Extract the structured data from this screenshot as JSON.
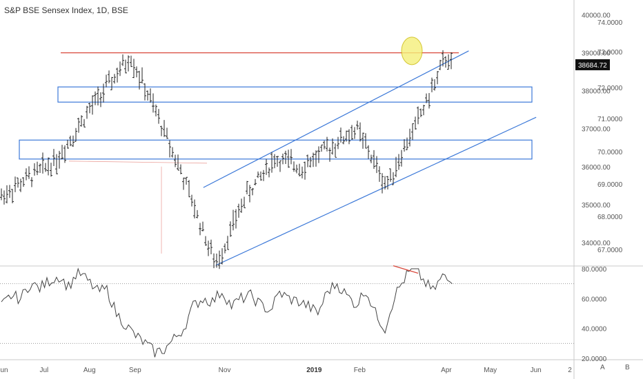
{
  "header": {
    "title": "S&P BSE Sensex Index, 1D, BSE"
  },
  "price_label": "38684.72",
  "corner_buttons": [
    "A",
    "B"
  ],
  "colors": {
    "price_bars": "#222222",
    "channel": "#3b78d8",
    "resistance": "#d9483b",
    "highlight": "#f5ef7a",
    "rsi_line": "#444444",
    "price_tag_bg": "#111111"
  },
  "chart_data": [
    {
      "type": "ohlc",
      "title": "S&P BSE Sensex Index, 1D, BSE",
      "x_ticks": [
        "un",
        "Jul",
        "Aug",
        "Sep",
        "Nov",
        "2019",
        "Feb",
        "Apr",
        "May",
        "Jun",
        "2"
      ],
      "y_ticks_left_axis": [
        "40000.00",
        "39000.00",
        "38000.00",
        "37000.00",
        "36000.00",
        "35000.00",
        "34000.00"
      ],
      "y_ticks_right_axis": [
        "74.0000",
        "73.0000",
        "72.0000",
        "71.0000",
        "70.0000",
        "69.0000",
        "68.0000",
        "67.0000"
      ],
      "ylim": [
        33400,
        40300
      ],
      "last_price": 38684.72,
      "key_closes": [
        {
          "date": "2018-06",
          "close": 35200
        },
        {
          "date": "2018-07-10",
          "close": 36200
        },
        {
          "date": "2018-08-01",
          "close": 37500
        },
        {
          "date": "2018-08-29",
          "close": 38900
        },
        {
          "date": "2018-09-20",
          "close": 37000
        },
        {
          "date": "2018-10-01",
          "close": 36000
        },
        {
          "date": "2018-10-26",
          "close": 33400
        },
        {
          "date": "2018-11-15",
          "close": 35200
        },
        {
          "date": "2018-12-05",
          "close": 36200
        },
        {
          "date": "2018-12-24",
          "close": 36000
        },
        {
          "date": "2019-01-30",
          "close": 37000
        },
        {
          "date": "2019-02-19",
          "close": 35500
        },
        {
          "date": "2019-03-05",
          "close": 36600
        },
        {
          "date": "2019-03-22",
          "close": 38000
        },
        {
          "date": "2019-04-01",
          "close": 38900
        },
        {
          "date": "2019-04-05",
          "close": 38684.72
        }
      ],
      "annotations": {
        "resistance_level": 39000,
        "support_zones": [
          [
            37700,
            38100
          ],
          [
            36200,
            36700
          ]
        ],
        "channel_upper": [
          {
            "date": "2018-10-26",
            "value": 35450
          },
          {
            "date": "2019-04-05",
            "value": 39050
          }
        ],
        "channel_lower": [
          {
            "date": "2018-10-26",
            "value": 33400
          },
          {
            "date": "2019-05-20",
            "value": 37300
          }
        ]
      }
    },
    {
      "type": "line",
      "indicator": "oscillator",
      "y_ticks": [
        "80.0000",
        "60.0000",
        "40.0000",
        "20.0000"
      ],
      "ylim": [
        20,
        80
      ],
      "levels": [
        70,
        30
      ],
      "values": [
        55,
        62,
        60,
        70,
        67,
        72,
        75,
        68,
        78,
        72,
        65,
        66,
        50,
        42,
        35,
        30,
        24,
        26,
        33,
        40,
        55,
        60,
        58,
        65,
        55,
        60,
        62,
        56,
        52,
        64,
        60,
        58,
        55,
        50,
        65,
        70,
        62,
        56,
        66,
        50,
        40,
        62,
        73,
        82,
        72,
        65,
        75,
        70
      ]
    }
  ]
}
